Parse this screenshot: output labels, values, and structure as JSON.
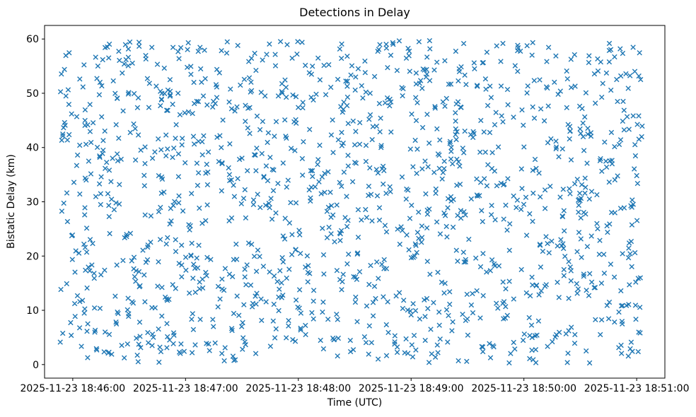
{
  "chart_data": {
    "type": "scatter",
    "title": "Detections in Delay",
    "xlabel": "Time (UTC)",
    "ylabel": "Bistatic Delay (km)",
    "legend": "none",
    "grid": false,
    "marker": "x",
    "marker_color": "#1f77b4",
    "marker_size_px": 8,
    "x_axis": {
      "tick_labels": [
        "2025-11-23 18:46:00",
        "2025-11-23 18:47:00",
        "2025-11-23 18:48:00",
        "2025-11-23 18:49:00",
        "2025-11-23 18:50:00",
        "2025-11-23 18:51:00"
      ],
      "tick_seconds": [
        15,
        75,
        135,
        195,
        255,
        315
      ],
      "domain_seconds": [
        0,
        330
      ]
    },
    "y_axis": {
      "ticks": [
        0,
        10,
        20,
        30,
        40,
        50,
        60
      ],
      "range": [
        -2.5,
        62.5
      ]
    },
    "points": {
      "description": "dense uniform random scatter of detections across full time and delay extent",
      "distribution": "uniform-random",
      "count": 1450,
      "seed": 42,
      "x_seconds_range": [
        8,
        318
      ],
      "y_range": [
        0.3,
        59.7
      ]
    }
  }
}
